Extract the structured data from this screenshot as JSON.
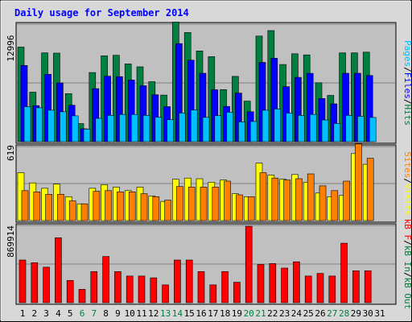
{
  "chart_data": {
    "type": "bar",
    "title": "Daily usage for September 2014",
    "categories": [
      "1",
      "2",
      "3",
      "4",
      "5",
      "6",
      "7",
      "8",
      "9",
      "10",
      "11",
      "12",
      "13",
      "14",
      "15",
      "16",
      "17",
      "18",
      "19",
      "20",
      "21",
      "22",
      "23",
      "24",
      "25",
      "26",
      "27",
      "28",
      "29",
      "30",
      "31"
    ],
    "weekend_days": [
      "6",
      "7",
      "13",
      "14",
      "20",
      "21",
      "27",
      "28"
    ],
    "panels": [
      {
        "id": "hits-files-pages",
        "scale_label": "12996",
        "ymax": 12996,
        "series": [
          {
            "name": "Hits",
            "color": "#008040",
            "values": [
              10460,
              5470,
              9820,
              9790,
              5310,
              2000,
              7650,
              9500,
              9550,
              8600,
              8280,
              6630,
              5150,
              13230,
              12070,
              10030,
              9400,
              5760,
              7220,
              4490,
              11680,
              12280,
              8540,
              9720,
              9600,
              6520,
              5120,
              9820,
              9820,
              9900,
              0
            ]
          },
          {
            "name": "Files",
            "color": "#0000ff",
            "values": [
              8430,
              3990,
              7450,
              6500,
              4030,
              1430,
              5870,
              7250,
              7190,
              6820,
              6190,
              5190,
              3870,
              10840,
              9020,
              7570,
              5740,
              3900,
              5380,
              3310,
              8770,
              9220,
              6080,
              7110,
              7560,
              4770,
              4180,
              7570,
              7570,
              7320,
              0
            ]
          },
          {
            "name": "Pages",
            "color": "#00c0ff",
            "values": [
              3870,
              3750,
              3480,
              3310,
              2860,
              1400,
              2580,
              2910,
              3010,
              3010,
              2910,
              2710,
              2430,
              3170,
              3510,
              2690,
              2880,
              3260,
              2200,
              2230,
              3480,
              3620,
              3160,
              2910,
              3010,
              2400,
              2020,
              2910,
              2800,
              2680,
              0
            ]
          }
        ]
      },
      {
        "id": "visits-sites",
        "scale_label": "619",
        "ymax": 619,
        "series": [
          {
            "name": "Visits",
            "color": "#ffff00",
            "values": [
              400,
              315,
              270,
              305,
              200,
              140,
              270,
              300,
              280,
              250,
              280,
              205,
              160,
              345,
              355,
              350,
              320,
              340,
              225,
              200,
              480,
              380,
              345,
              385,
              320,
              230,
              200,
              210,
              560,
              470,
              0
            ]
          },
          {
            "name": "Sites",
            "color": "#ff8000",
            "values": [
              250,
              240,
              220,
              220,
              165,
              140,
              245,
              250,
              240,
              240,
              225,
              200,
              170,
              285,
              280,
              280,
              280,
              330,
              215,
              200,
              400,
              355,
              340,
              350,
              390,
              290,
              250,
              330,
              640,
              520,
              0
            ]
          }
        ]
      },
      {
        "id": "kbytes",
        "scale_label": "869914",
        "ymax": 869914,
        "series": [
          {
            "name": "kB F",
            "color": "#ff0000",
            "values": [
              480000,
              450000,
              400000,
              730000,
              250000,
              150000,
              350000,
              520000,
              350000,
              300000,
              300000,
              280000,
              200000,
              480000,
              480000,
              350000,
              200000,
              350000,
              230000,
              860000,
              430000,
              440000,
              390000,
              460000,
              300000,
              330000,
              300000,
              670000,
              360000,
              360000,
              0
            ]
          },
          {
            "name": "kB In",
            "color": "#008040",
            "values": [
              0,
              0,
              0,
              0,
              0,
              0,
              0,
              0,
              0,
              0,
              0,
              0,
              0,
              0,
              0,
              0,
              0,
              0,
              0,
              0,
              0,
              0,
              0,
              0,
              0,
              0,
              0,
              0,
              0,
              0,
              0
            ]
          },
          {
            "name": "kB Out",
            "color": "#008040",
            "values": [
              0,
              0,
              0,
              0,
              0,
              0,
              0,
              0,
              0,
              0,
              0,
              0,
              0,
              0,
              0,
              0,
              0,
              0,
              0,
              0,
              0,
              0,
              0,
              0,
              0,
              0,
              0,
              0,
              0,
              0,
              0
            ]
          }
        ]
      }
    ],
    "legend": {
      "top": [
        {
          "text": "Pages",
          "color": "#00c0ff"
        },
        {
          "text": "/",
          "color": "#000000"
        },
        {
          "text": "Files",
          "color": "#0000ff"
        },
        {
          "text": "/",
          "color": "#000000"
        },
        {
          "text": "Hits",
          "color": "#008040"
        }
      ],
      "middle": [
        {
          "text": "Sites",
          "color": "#ff8000"
        },
        {
          "text": "/",
          "color": "#000000"
        },
        {
          "text": "Visits",
          "color": "#ffff00"
        }
      ],
      "bottom": [
        {
          "text": "kB F",
          "color": "#ff0000"
        },
        {
          "text": "/",
          "color": "#000000"
        },
        {
          "text": "kB In",
          "color": "#008040"
        },
        {
          "text": "/",
          "color": "#000000"
        },
        {
          "text": "kB Out",
          "color": "#008040"
        }
      ]
    },
    "colors": {
      "title": "#0000ff",
      "weekday_label": "#000000",
      "weekend_label": "#008040",
      "panel_bg": "#c0c0c0",
      "frame_bg": "#d8d8d8",
      "gridline": "#808080"
    },
    "grid": true
  }
}
